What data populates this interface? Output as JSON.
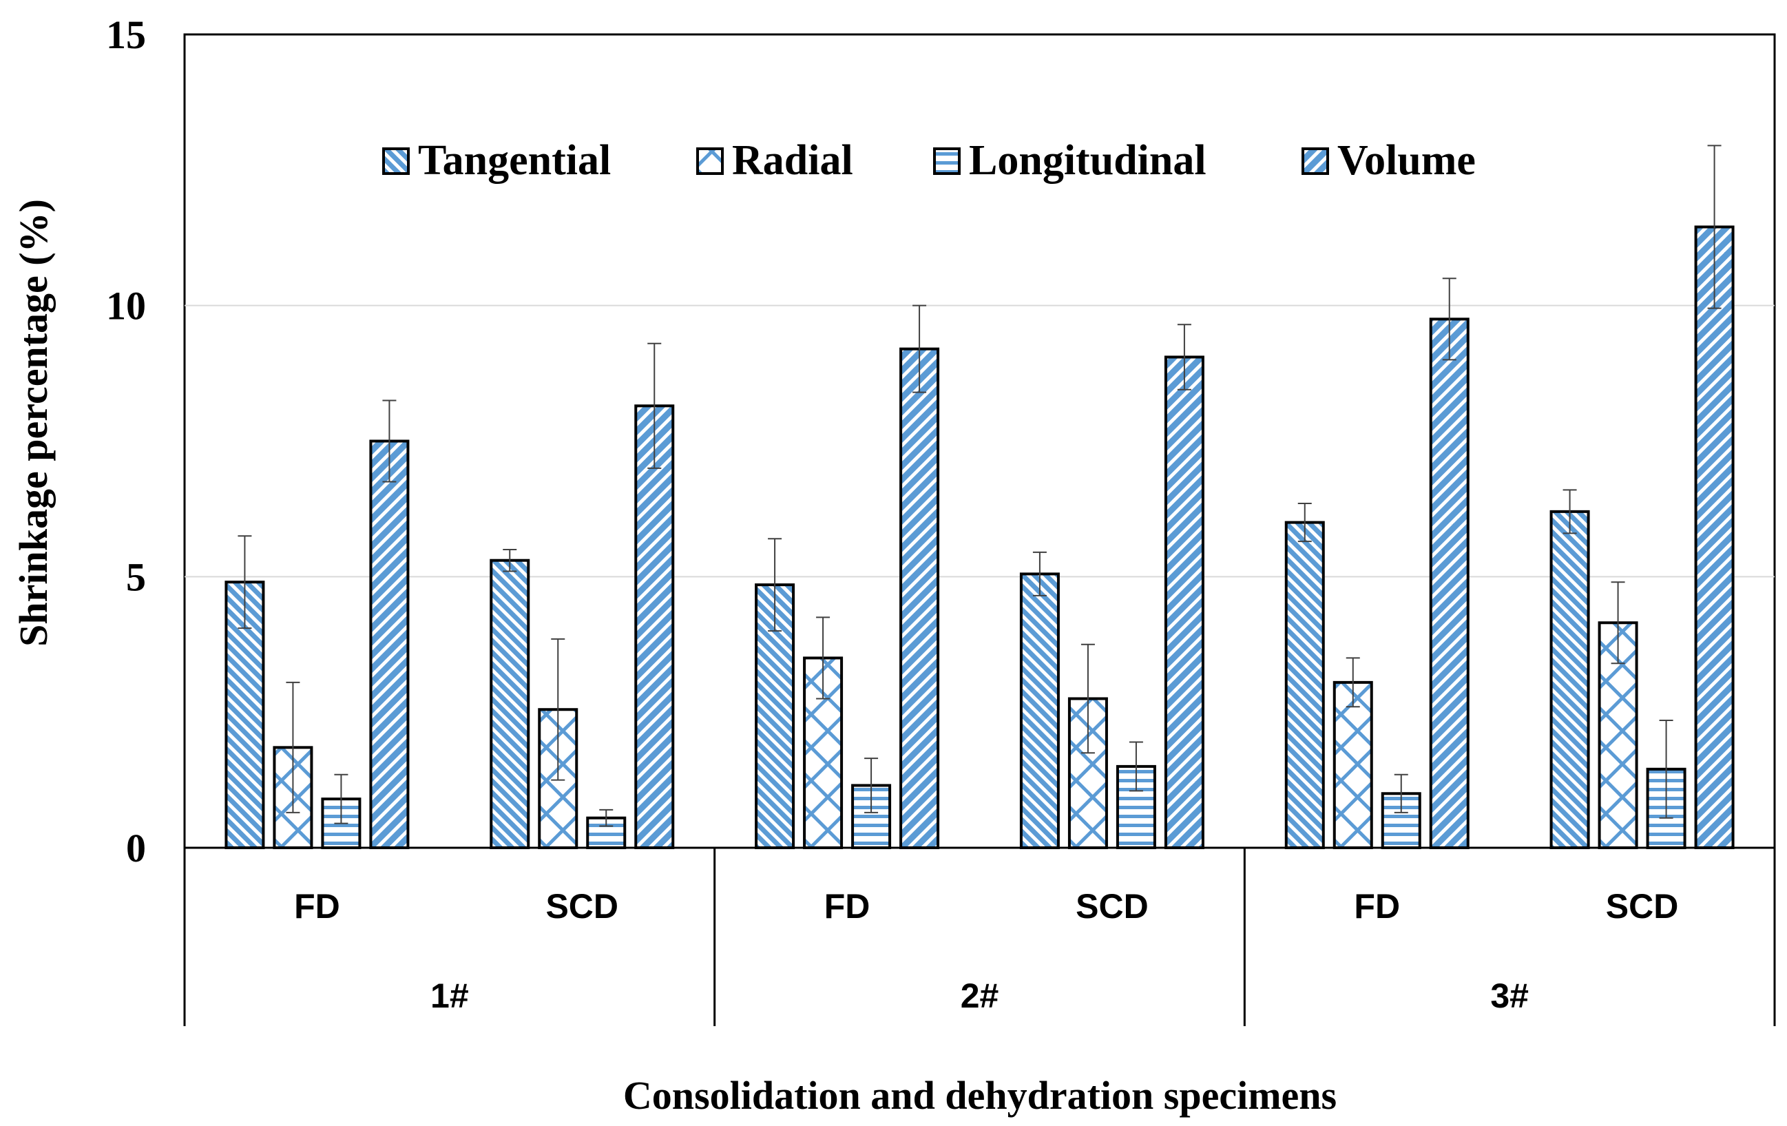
{
  "chart_data": {
    "type": "bar",
    "title": "",
    "xlabel": "Consolidation and dehydration specimens",
    "ylabel": "Shrinkage percentage (%)",
    "ylim": [
      0,
      15
    ],
    "yticks": [
      "0",
      "5",
      "10",
      "15"
    ],
    "grid": true,
    "legend_position": "top-center",
    "groups": [
      "1#",
      "2#",
      "3#"
    ],
    "categories": [
      "FD",
      "SCD",
      "FD",
      "SCD",
      "FD",
      "SCD"
    ],
    "series": [
      {
        "name": "Tangential",
        "color": "#5b9bd5",
        "pattern": "diag-fine",
        "values": [
          4.9,
          5.3,
          4.85,
          5.05,
          6.0,
          6.2
        ],
        "errors": [
          0.85,
          0.2,
          0.85,
          0.4,
          0.35,
          0.4
        ]
      },
      {
        "name": "Radial",
        "color": "#5b9bd5",
        "pattern": "cross-hatch",
        "values": [
          1.85,
          2.55,
          3.5,
          2.75,
          3.05,
          4.15
        ],
        "errors": [
          1.2,
          1.3,
          0.75,
          1.0,
          0.45,
          0.75
        ]
      },
      {
        "name": "Longitudinal",
        "color": "#5b9bd5",
        "pattern": "horizontal",
        "values": [
          0.9,
          0.55,
          1.15,
          1.5,
          1.0,
          1.45
        ],
        "errors": [
          0.45,
          0.15,
          0.5,
          0.45,
          0.35,
          0.9
        ]
      },
      {
        "name": "Volume",
        "color": "#5b9bd5",
        "pattern": "diag-wide",
        "values": [
          7.5,
          8.15,
          9.2,
          9.05,
          9.75,
          11.45
        ],
        "errors": [
          0.75,
          1.15,
          0.8,
          0.6,
          0.75,
          1.5
        ]
      }
    ]
  }
}
